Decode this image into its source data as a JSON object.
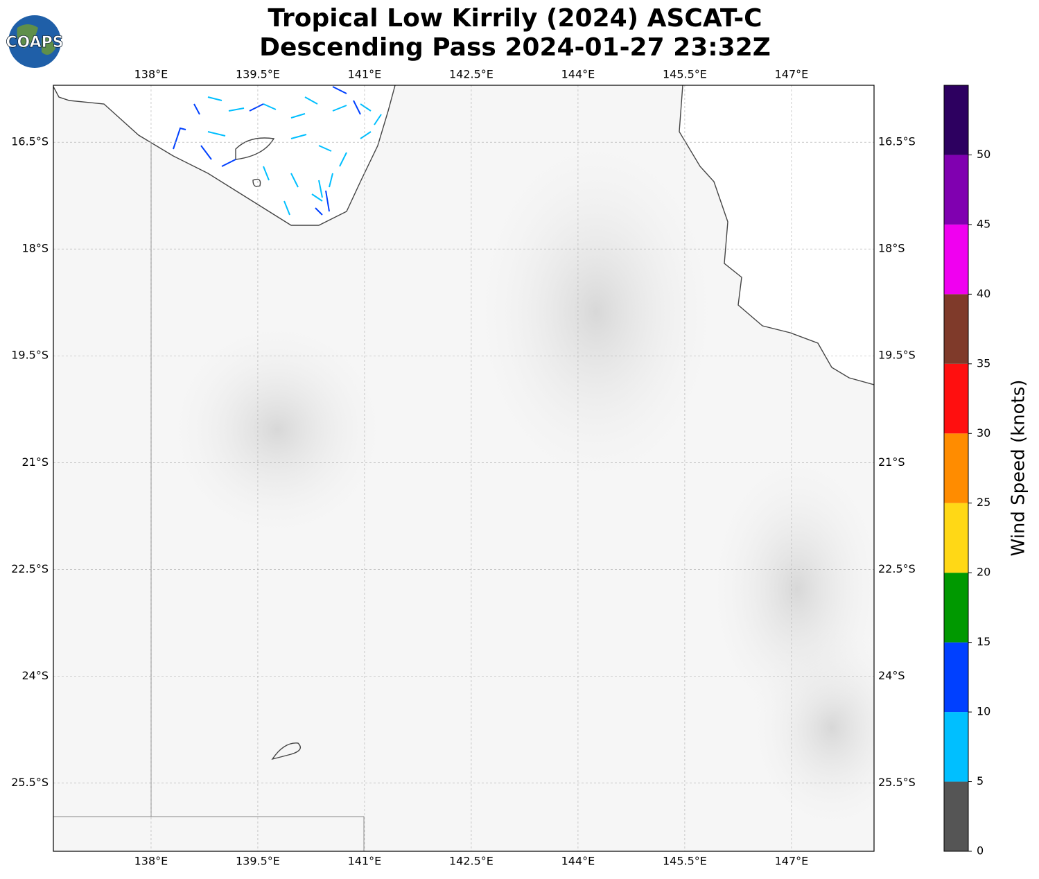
{
  "title": "Tropical Low Kirrily (2024) ASCAT-C",
  "subtitle": "Descending Pass 2024-01-27 23:32Z",
  "logo": "COAPS",
  "map": {
    "xlim": [
      136.627,
      148.16
    ],
    "ylim": [
      -26.46,
      -15.7
    ],
    "xticks": [
      {
        "value": 138,
        "label": "138°E"
      },
      {
        "value": 139.5,
        "label": "139.5°E"
      },
      {
        "value": 141,
        "label": "141°E"
      },
      {
        "value": 142.5,
        "label": "142.5°E"
      },
      {
        "value": 144,
        "label": "144°E"
      },
      {
        "value": 145.5,
        "label": "145.5°E"
      },
      {
        "value": 147,
        "label": "147°E"
      }
    ],
    "yticks": [
      {
        "value": -16.5,
        "label": "16.5°S"
      },
      {
        "value": -18,
        "label": "18°S"
      },
      {
        "value": -19.5,
        "label": "19.5°S"
      },
      {
        "value": -21,
        "label": "21°S"
      },
      {
        "value": -22.5,
        "label": "22.5°S"
      },
      {
        "value": -24,
        "label": "24°S"
      },
      {
        "value": -25.5,
        "label": "25.5°S"
      }
    ],
    "grid": true
  },
  "colorbar": {
    "label": "Wind Speed (knots)",
    "lim": [
      0,
      55
    ],
    "ticks": [
      0,
      5,
      10,
      15,
      20,
      25,
      30,
      35,
      40,
      45,
      50
    ],
    "colors": [
      "#555555",
      "#00bfff",
      "#0040ff",
      "#009900",
      "#ffd816",
      "#ff8c00",
      "#ff0f0f",
      "#7f3a2a",
      "#f000f0",
      "#8000b0",
      "#2d0060"
    ]
  }
}
